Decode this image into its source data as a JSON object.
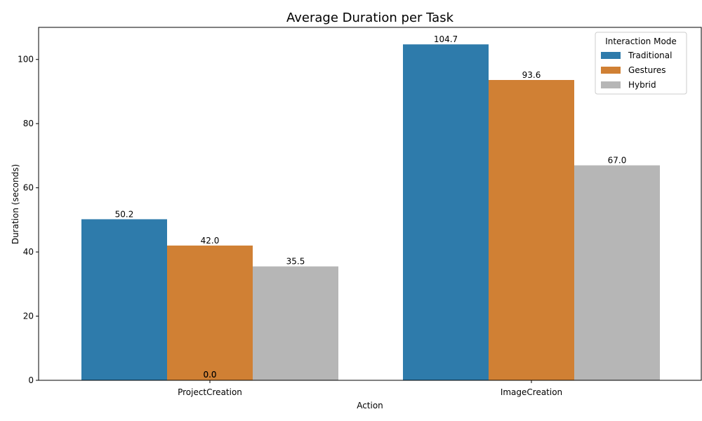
{
  "chart_data": {
    "type": "bar",
    "title": "Average Duration per Task",
    "xlabel": "Action",
    "ylabel": "Duration (seconds)",
    "categories": [
      "ProjectCreation",
      "ImageCreation"
    ],
    "series": [
      {
        "name": "Traditional",
        "color": "#2e7bab",
        "values": [
          50.2,
          104.7
        ],
        "labels": [
          "50.2",
          "104.7"
        ]
      },
      {
        "name": "Gestures",
        "color": "#d08034",
        "values": [
          42.0,
          93.6
        ],
        "labels": [
          "42.0",
          "93.6"
        ]
      },
      {
        "name": "Hybrid",
        "color": "#b6b6b6",
        "values": [
          35.5,
          67.0
        ],
        "labels": [
          "35.5",
          "67.0"
        ]
      }
    ],
    "extra_labels": [
      "0.0",
      "0.0"
    ],
    "ylim": [
      0,
      110
    ],
    "yticks": [
      0,
      20,
      40,
      60,
      80,
      100
    ],
    "grid": false,
    "legend": {
      "title": "Interaction Mode",
      "placement": "top-right"
    }
  }
}
